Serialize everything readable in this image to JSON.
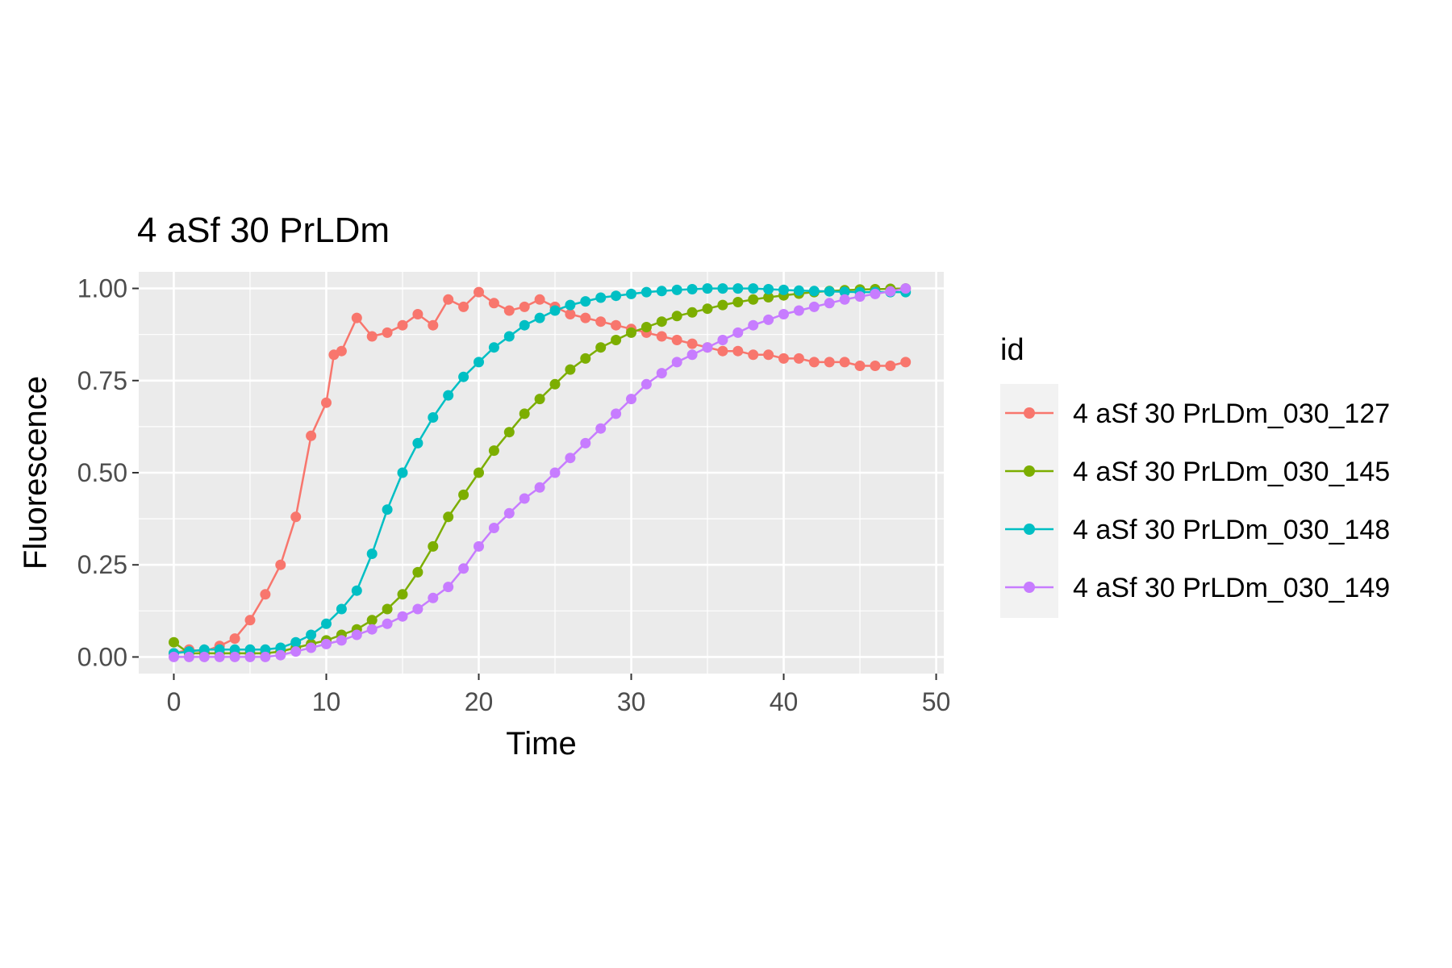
{
  "chart_data": {
    "type": "line",
    "title": "4 aSf 30 PrLDm",
    "xlabel": "Time",
    "ylabel": "Fluorescence",
    "xlim": [
      -2.3,
      50.5
    ],
    "ylim": [
      -0.045,
      1.045
    ],
    "x_ticks": [
      0,
      10,
      20,
      30,
      40,
      50
    ],
    "y_ticks": [
      0,
      0.25,
      0.5,
      0.75,
      1
    ],
    "x_tick_labels": [
      "0",
      "10",
      "20",
      "30",
      "40",
      "50"
    ],
    "y_tick_labels": [
      "0.00",
      "0.25",
      "0.50",
      "0.75",
      "1.00"
    ],
    "grid": true,
    "legend": {
      "title": "id",
      "position": "right"
    },
    "series": [
      {
        "name": "4 aSf 30 PrLDm_030_127",
        "color": "#F8766D",
        "x": [
          0,
          1,
          2,
          3,
          4,
          5,
          6,
          7,
          8,
          9,
          10,
          10.5,
          11,
          12,
          13,
          14,
          15,
          16,
          17,
          18,
          19,
          20,
          21,
          22,
          23,
          24,
          25,
          26,
          27,
          28,
          29,
          30,
          31,
          32,
          33,
          34,
          35,
          36,
          37,
          38,
          39,
          40,
          41,
          42,
          43,
          44,
          45,
          46,
          47,
          48
        ],
        "y": [
          0.01,
          0.02,
          0.015,
          0.03,
          0.05,
          0.1,
          0.17,
          0.25,
          0.38,
          0.6,
          0.69,
          0.82,
          0.83,
          0.92,
          0.87,
          0.88,
          0.9,
          0.93,
          0.9,
          0.97,
          0.95,
          0.99,
          0.96,
          0.94,
          0.95,
          0.97,
          0.95,
          0.93,
          0.92,
          0.91,
          0.9,
          0.89,
          0.88,
          0.87,
          0.86,
          0.85,
          0.84,
          0.83,
          0.83,
          0.82,
          0.82,
          0.81,
          0.81,
          0.8,
          0.8,
          0.8,
          0.79,
          0.79,
          0.79,
          0.8
        ]
      },
      {
        "name": "4 aSf 30 PrLDm_030_145",
        "color": "#7CAE00",
        "x": [
          0,
          1,
          2,
          3,
          4,
          5,
          6,
          7,
          8,
          9,
          10,
          11,
          12,
          13,
          14,
          15,
          16,
          17,
          18,
          19,
          20,
          21,
          22,
          23,
          24,
          25,
          26,
          27,
          28,
          29,
          30,
          31,
          32,
          33,
          34,
          35,
          36,
          37,
          38,
          39,
          40,
          41,
          42,
          43,
          44,
          45,
          46,
          47,
          48
        ],
        "y": [
          0.04,
          0.01,
          0.01,
          0.01,
          0.01,
          0.01,
          0.01,
          0.015,
          0.025,
          0.035,
          0.045,
          0.06,
          0.075,
          0.1,
          0.13,
          0.17,
          0.23,
          0.3,
          0.38,
          0.44,
          0.5,
          0.56,
          0.61,
          0.66,
          0.7,
          0.74,
          0.78,
          0.81,
          0.84,
          0.86,
          0.88,
          0.895,
          0.91,
          0.925,
          0.935,
          0.945,
          0.955,
          0.963,
          0.97,
          0.976,
          0.981,
          0.986,
          0.99,
          0.993,
          0.995,
          0.997,
          0.998,
          0.999,
          1.0
        ]
      },
      {
        "name": "4 aSf 30 PrLDm_030_148",
        "color": "#00BFC4",
        "x": [
          0,
          1,
          2,
          3,
          4,
          5,
          6,
          7,
          8,
          9,
          10,
          11,
          12,
          13,
          14,
          15,
          16,
          17,
          18,
          19,
          20,
          21,
          22,
          23,
          24,
          25,
          26,
          27,
          28,
          29,
          30,
          31,
          32,
          33,
          34,
          35,
          36,
          37,
          38,
          39,
          40,
          41,
          42,
          43,
          44,
          45,
          46,
          47,
          48
        ],
        "y": [
          0.01,
          0.015,
          0.02,
          0.02,
          0.02,
          0.02,
          0.02,
          0.025,
          0.04,
          0.06,
          0.09,
          0.13,
          0.18,
          0.28,
          0.4,
          0.5,
          0.58,
          0.65,
          0.71,
          0.76,
          0.8,
          0.84,
          0.87,
          0.9,
          0.92,
          0.94,
          0.955,
          0.965,
          0.975,
          0.98,
          0.985,
          0.99,
          0.993,
          0.996,
          0.998,
          1.0,
          1.0,
          1.0,
          1.0,
          0.998,
          0.996,
          0.994,
          0.993,
          0.992,
          0.991,
          0.99,
          0.99,
          0.99,
          0.99
        ]
      },
      {
        "name": "4 aSf 30 PrLDm_030_149",
        "color": "#C77CFF",
        "x": [
          0,
          1,
          2,
          3,
          4,
          5,
          6,
          7,
          8,
          9,
          10,
          11,
          12,
          13,
          14,
          15,
          16,
          17,
          18,
          19,
          20,
          21,
          22,
          23,
          24,
          25,
          26,
          27,
          28,
          29,
          30,
          31,
          32,
          33,
          34,
          35,
          36,
          37,
          38,
          39,
          40,
          41,
          42,
          43,
          44,
          45,
          46,
          47,
          48
        ],
        "y": [
          0.0,
          0.0,
          0.0,
          0.0,
          0.0,
          0.0,
          0.0,
          0.005,
          0.015,
          0.025,
          0.035,
          0.045,
          0.06,
          0.075,
          0.09,
          0.11,
          0.13,
          0.16,
          0.19,
          0.24,
          0.3,
          0.35,
          0.39,
          0.43,
          0.46,
          0.5,
          0.54,
          0.58,
          0.62,
          0.66,
          0.7,
          0.74,
          0.77,
          0.8,
          0.82,
          0.84,
          0.86,
          0.88,
          0.9,
          0.915,
          0.93,
          0.94,
          0.95,
          0.96,
          0.97,
          0.978,
          0.985,
          0.992,
          1.0
        ]
      }
    ]
  }
}
